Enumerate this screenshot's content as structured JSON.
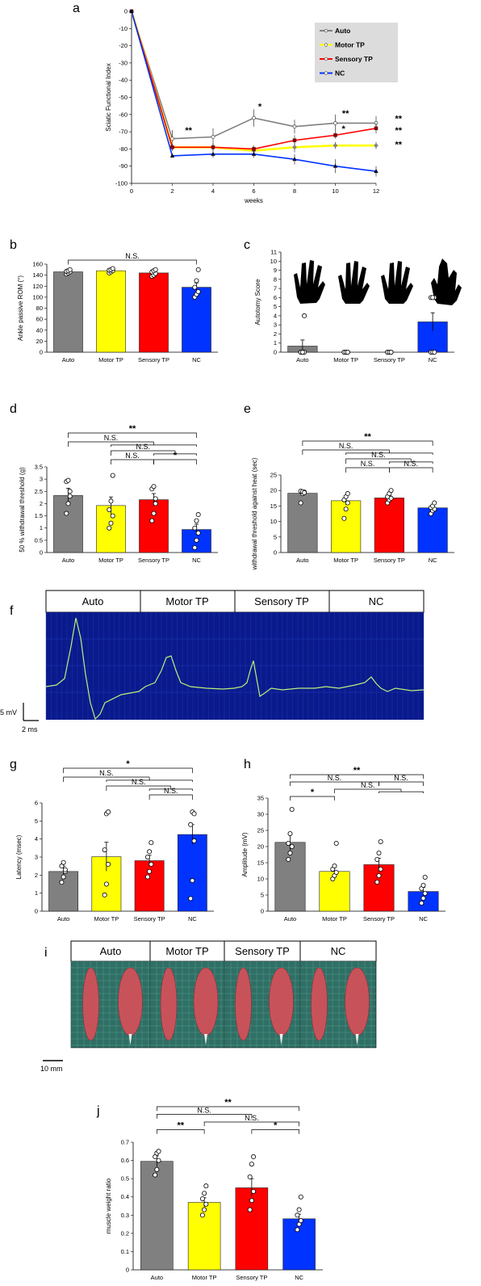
{
  "panels": {
    "a": "a",
    "b": "b",
    "c": "c",
    "d": "d",
    "e": "e",
    "f": "f",
    "g": "g",
    "h": "h",
    "i": "i",
    "j": "j"
  },
  "colors": {
    "Auto": "#808080",
    "Motor TP": "#ffff00",
    "Sensory TP": "#ff0000",
    "NC": "#0033ff",
    "legend_bg": "#dcdcdc",
    "emg_bg": "#0a1a8c",
    "emg_grid": "#1f3bb8",
    "emg_trace": "#b8f07a",
    "photo_bg": "#2f6f65",
    "muscle": "#c8525a"
  },
  "headers": {
    "f": [
      "Auto",
      "Motor TP",
      "Sensory TP",
      "NC"
    ],
    "i": [
      "Auto",
      "Motor TP",
      "Sensory TP",
      "NC"
    ]
  },
  "scale_bars": {
    "f_voltage": "5 mV",
    "f_time": "2 ms",
    "i_length": "10 mm"
  },
  "chart_data": [
    {
      "id": "a",
      "type": "line",
      "ylabel": "Sciatic Functional Index",
      "xlabel": "weeks",
      "x": [
        0,
        2,
        4,
        6,
        8,
        10,
        12
      ],
      "xlim": [
        0,
        12
      ],
      "ylim": [
        -100,
        0
      ],
      "xticks": [
        "0",
        "2",
        "4",
        "6",
        "8",
        "10",
        "12"
      ],
      "yticks": [
        "0",
        "-10",
        "-20",
        "-30",
        "-40",
        "-50",
        "-60",
        "-70",
        "-80",
        "-90",
        "-100"
      ],
      "legend_position": "top-right",
      "series": [
        {
          "name": "Auto",
          "values": [
            0,
            -74,
            -73,
            -62,
            -67,
            -65,
            -65
          ],
          "err": [
            0,
            5,
            5,
            5,
            4,
            5,
            4
          ],
          "marker": "circle"
        },
        {
          "name": "Motor TP",
          "values": [
            0,
            -79,
            -79,
            -81,
            -79,
            -78,
            -78
          ],
          "err": [
            0,
            2,
            2,
            2,
            3,
            2,
            2
          ],
          "marker": "diamond"
        },
        {
          "name": "Sensory TP",
          "values": [
            0,
            -79,
            -79,
            -80,
            -75,
            -72,
            -68
          ],
          "err": [
            0,
            2,
            2,
            2,
            3,
            2,
            3
          ],
          "marker": "square"
        },
        {
          "name": "NC",
          "values": [
            0,
            -84,
            -83,
            -83,
            -86,
            -90,
            -93
          ],
          "err": [
            0,
            1,
            2,
            2,
            3,
            4,
            3
          ],
          "marker": "triangle"
        }
      ],
      "annotations": [
        {
          "text": "**",
          "x": 2.8,
          "y": -71
        },
        {
          "text": "*",
          "x": 6.3,
          "y": -57
        },
        {
          "text": "**",
          "x": 10.5,
          "y": -61
        },
        {
          "text": "*",
          "x": 10.4,
          "y": -70
        },
        {
          "text": "**",
          "x": 13.1,
          "y": -64
        },
        {
          "text": "**",
          "x": 13.1,
          "y": -71
        },
        {
          "text": "**",
          "x": 13.1,
          "y": -79
        }
      ]
    },
    {
      "id": "b",
      "type": "bar",
      "ylabel": "Ankle passive ROM (°)",
      "categories": [
        "Auto",
        "Motor TP",
        "Sensory TP",
        "NC"
      ],
      "values": [
        146,
        148,
        144,
        118
      ],
      "err": [
        3,
        2,
        3,
        8
      ],
      "points": [
        [
          142,
          144,
          146,
          147,
          148,
          150
        ],
        [
          144,
          146,
          148,
          149,
          150,
          152
        ],
        [
          138,
          140,
          143,
          146,
          148,
          150
        ],
        [
          100,
          105,
          110,
          118,
          130,
          150
        ]
      ],
      "ylim": [
        0,
        160
      ],
      "yticks": [
        "0",
        "20",
        "40",
        "60",
        "80",
        "100",
        "120",
        "140",
        "160"
      ],
      "brackets": [
        {
          "text": "N.S.",
          "from": 0,
          "to": 3,
          "level": 0
        }
      ]
    },
    {
      "id": "c",
      "type": "bar",
      "ylabel": "Autotomy Score",
      "categories": [
        "Auto",
        "Motor TP",
        "Sensory TP",
        "NC"
      ],
      "values": [
        0.67,
        0,
        0,
        3.33
      ],
      "err": [
        0.67,
        0,
        0,
        1
      ],
      "points": [
        [
          0,
          0,
          0,
          0,
          0,
          4
        ],
        [
          0,
          0,
          0,
          0,
          0,
          0
        ],
        [
          0,
          0,
          0,
          0,
          0,
          0
        ],
        [
          0,
          0,
          6,
          6,
          6,
          0
        ]
      ],
      "ylim": [
        0,
        11
      ],
      "yticks": [
        "0",
        "1",
        "2",
        "3",
        "4",
        "5",
        "6",
        "7",
        "8",
        "9",
        "10",
        "11"
      ],
      "brackets": []
    },
    {
      "id": "d",
      "type": "bar",
      "ylabel": "50 % withdrawal threshold (g)",
      "categories": [
        "Auto",
        "Motor TP",
        "Sensory TP",
        "NC"
      ],
      "values": [
        2.33,
        1.92,
        2.16,
        0.94
      ],
      "err": [
        0.3,
        0.35,
        0.25,
        0.22
      ],
      "points": [
        [
          1.6,
          2.0,
          2.3,
          2.9,
          2.95,
          2.5
        ],
        [
          1.0,
          1.2,
          1.5,
          1.75,
          2.1,
          3.15
        ],
        [
          1.3,
          1.6,
          2.2,
          2.6,
          2.7,
          2.0
        ],
        [
          0.2,
          0.5,
          0.8,
          1.0,
          1.3,
          1.55
        ]
      ],
      "ylim": [
        0,
        3.5
      ],
      "yticks": [
        "0",
        "0.5",
        "1",
        "1.5",
        "2",
        "2.5",
        "3",
        "3.5"
      ],
      "brackets": [
        {
          "text": "**",
          "from": 0,
          "to": 3,
          "level": 4
        },
        {
          "text": "N.S.",
          "from": 0,
          "group_to": [
            1,
            3
          ],
          "level": 3
        },
        {
          "text": "N.S.",
          "from": 1,
          "group_to": [
            2,
            3
          ],
          "level": 2
        },
        {
          "text": "N.S.",
          "from": 1,
          "to": 2,
          "level": 1
        },
        {
          "text": "*",
          "from": 2,
          "to": 3,
          "level": 1
        }
      ]
    },
    {
      "id": "e",
      "type": "bar",
      "ylabel": "withdrawal threshold against heat (sec)",
      "categories": [
        "Auto",
        "Motor TP",
        "Sensory TP",
        "NC"
      ],
      "values": [
        19.1,
        16.7,
        17.6,
        14.4
      ],
      "err": [
        0.5,
        1.4,
        0.8,
        0.7
      ],
      "points": [
        [
          16,
          19,
          19.5,
          19.8,
          19.6,
          19.3
        ],
        [
          11,
          14,
          16,
          17,
          18,
          19
        ],
        [
          16,
          17,
          17.5,
          18,
          19,
          20
        ],
        [
          12.5,
          13.5,
          14,
          14.5,
          15,
          16
        ]
      ],
      "ylim": [
        0,
        25
      ],
      "yticks": [
        "0",
        "5",
        "10",
        "15",
        "20",
        "25"
      ],
      "brackets": [
        {
          "text": "**",
          "from": 0,
          "to": 3,
          "level": 4
        },
        {
          "text": "N.S.",
          "from": 0,
          "group_to": [
            1,
            3
          ],
          "level": 3
        },
        {
          "text": "N.S.",
          "from": 1,
          "group_to": [
            2,
            3
          ],
          "level": 2
        },
        {
          "text": "N.S.",
          "from": 1,
          "to": 2,
          "level": 1
        },
        {
          "text": "N.S.",
          "from": 2,
          "to": 3,
          "level": 1
        }
      ]
    },
    {
      "id": "g",
      "type": "bar",
      "ylabel": "Latency (msec)",
      "categories": [
        "Auto",
        "Motor TP",
        "Sensory TP",
        "NC"
      ],
      "values": [
        2.2,
        3.02,
        2.8,
        4.25
      ],
      "err": [
        0.3,
        0.8,
        0.3,
        0.55
      ],
      "points": [
        [
          1.6,
          1.9,
          2.2,
          2.5,
          2.7,
          2.3
        ],
        [
          0.9,
          1.5,
          2.6,
          3.4,
          5.4,
          5.5
        ],
        [
          1.9,
          2.2,
          2.6,
          3.0,
          3.3,
          3.8
        ],
        [
          0.7,
          1.7,
          3.9,
          4.8,
          5.5,
          5.4
        ]
      ],
      "ylim": [
        0,
        6
      ],
      "yticks": [
        "0",
        "1",
        "2",
        "3",
        "4",
        "5",
        "6"
      ],
      "brackets": [
        {
          "text": "*",
          "from": 0,
          "to": 3,
          "level": 4
        },
        {
          "text": "N.S.",
          "from": 0,
          "group_to": [
            1,
            3
          ],
          "level": 3
        },
        {
          "text": "N.S.",
          "from": 1,
          "group_to": [
            2,
            3
          ],
          "level": 2
        },
        {
          "text": "N.S.",
          "from": 2,
          "to": 3,
          "level": 1
        }
      ]
    },
    {
      "id": "h",
      "type": "bar",
      "ylabel": "Amplitude (mV)",
      "categories": [
        "Auto",
        "Motor TP",
        "Sensory TP",
        "NC"
      ],
      "values": [
        21.3,
        12.3,
        14.4,
        6.1
      ],
      "err": [
        2.5,
        1.4,
        2.0,
        1.3
      ],
      "points": [
        [
          16,
          18,
          20,
          21,
          24,
          31.5
        ],
        [
          10,
          11,
          12,
          13,
          14,
          21
        ],
        [
          9,
          11,
          13,
          16,
          18,
          21.5
        ],
        [
          2.5,
          4,
          5.5,
          7,
          8,
          10.5
        ]
      ],
      "ylim": [
        0,
        35
      ],
      "yticks": [
        "0",
        "5",
        "10",
        "15",
        "20",
        "25",
        "30",
        "35"
      ],
      "brackets": [
        {
          "text": "**",
          "from": 0,
          "to": 3,
          "level": 4
        },
        {
          "text": "N.S.",
          "from": 0,
          "to": 2,
          "level": 3
        },
        {
          "text": "*",
          "from": 0,
          "to": 1,
          "level": 1
        },
        {
          "text": "N.S.",
          "from": 1,
          "to_group": [
            2,
            3
          ],
          "level": 2
        },
        {
          "text": "N.S.",
          "from": 2,
          "to": 3,
          "level": 3
        }
      ]
    },
    {
      "id": "j",
      "type": "bar",
      "ylabel": "muscle weight ratio",
      "categories": [
        "Auto",
        "Motor TP",
        "Sensory TP",
        "NC"
      ],
      "values": [
        0.595,
        0.37,
        0.45,
        0.28
      ],
      "err": [
        0.03,
        0.025,
        0.05,
        0.025
      ],
      "points": [
        [
          0.52,
          0.55,
          0.6,
          0.62,
          0.64,
          0.65
        ],
        [
          0.3,
          0.33,
          0.36,
          0.39,
          0.42,
          0.46
        ],
        [
          0.33,
          0.38,
          0.43,
          0.51,
          0.58,
          0.62
        ],
        [
          0.22,
          0.25,
          0.27,
          0.3,
          0.33,
          0.4
        ]
      ],
      "ylim": [
        0,
        0.7
      ],
      "yticks": [
        "0",
        "0.1",
        "0.2",
        "0.3",
        "0.4",
        "0.5",
        "0.6",
        "0.7"
      ],
      "brackets": [
        {
          "text": "**",
          "from": 0,
          "to": 3,
          "level": 4
        },
        {
          "text": "N.S.",
          "from": 0,
          "to": 2,
          "level": 3
        },
        {
          "text": "**",
          "from": 0,
          "to": 1,
          "level": 1
        },
        {
          "text": "N.S.",
          "from": 1,
          "to": 3,
          "level": 2
        },
        {
          "text": "*",
          "from": 2,
          "to": 3,
          "level": 1
        }
      ]
    }
  ]
}
